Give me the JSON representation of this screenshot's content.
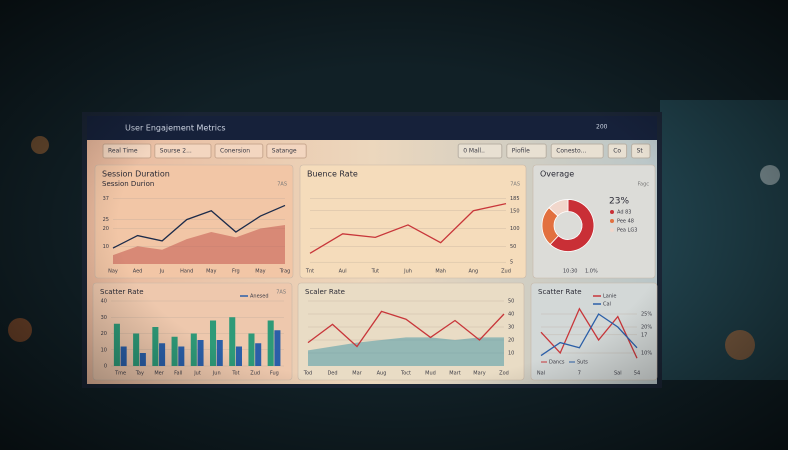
{
  "header": {
    "title": "User Engajement Metrics",
    "badge": "200"
  },
  "toolbar": {
    "left": [
      "Real Time",
      "Sourse 2...",
      "Conersion",
      "Satange"
    ],
    "right": [
      "0 Mall..",
      "Piofile",
      "Conesto...",
      "Co",
      "St"
    ]
  },
  "chart_data": [
    {
      "type": "line",
      "panel_title": "Session Duration",
      "title": "Session Durion",
      "corner_note": "7AS",
      "axis_side": "left",
      "categories": [
        "Nay",
        "Aed",
        "Ju",
        "Hand",
        "May",
        "Frg",
        "May",
        "Trag"
      ],
      "series": [
        {
          "color": "#c2584f",
          "style": "area",
          "values": [
            5,
            10,
            8,
            14,
            18,
            15,
            20,
            22
          ]
        },
        {
          "color": "#1c2b4a",
          "style": "line",
          "values": [
            9,
            16,
            13,
            25,
            30,
            18,
            27,
            33
          ]
        }
      ],
      "ylim": [
        0,
        40
      ],
      "yticks": [
        10,
        20,
        25,
        37
      ]
    },
    {
      "type": "line",
      "panel_title": "Buence Rate",
      "corner_note": "7AS",
      "axis_side": "right",
      "categories": [
        "Tnt",
        "Aul",
        "Tut",
        "Juh",
        "Mah",
        "Ang",
        "Zud"
      ],
      "series": [
        {
          "color": "#c8363a",
          "style": "line",
          "values": [
            30,
            85,
            75,
            110,
            60,
            150,
            170
          ]
        }
      ],
      "ylim": [
        0,
        200
      ],
      "yticks": [
        5,
        50,
        100,
        150,
        185
      ]
    },
    {
      "type": "pie",
      "panel_title": "Overage",
      "corner_note": "Fagc",
      "center_label": "23%",
      "labels": [
        "Ad 83",
        "Pee 48",
        "Pea LG3"
      ],
      "values": [
        62,
        25,
        13
      ],
      "colors": [
        "#c92f36",
        "#e2703f",
        "#f1d7cc"
      ],
      "footer": [
        "10:30",
        "1.0%"
      ]
    },
    {
      "type": "bar",
      "title": "Scatter Rate",
      "corner_note": "7AS",
      "axis_side": "left",
      "categories": [
        "Tme",
        "Tay",
        "Mer",
        "Fall",
        "Jut",
        "Jun",
        "Tot",
        "Zud",
        "Fug"
      ],
      "series": [
        {
          "color": "#2e9a78",
          "style": "bar",
          "values": [
            26,
            20,
            24,
            18,
            20,
            28,
            30,
            20,
            28
          ]
        },
        {
          "name": "Anesed",
          "color": "#2b5fa8",
          "style": "bar",
          "values": [
            12,
            8,
            14,
            12,
            16,
            16,
            12,
            14,
            22
          ]
        }
      ],
      "ylim": [
        0,
        40
      ],
      "yticks": [
        0,
        10,
        20,
        30,
        40
      ]
    },
    {
      "type": "line",
      "title": "Scaler Rate",
      "axis_side": "right",
      "categories": [
        "Tod",
        "Ded",
        "Mar",
        "Aug",
        "Toct",
        "Mud",
        "Mart",
        "Mary",
        "Zod"
      ],
      "series": [
        {
          "color": "#4f9aa8",
          "style": "area",
          "values": [
            12,
            15,
            18,
            20,
            22,
            22,
            20,
            22,
            22
          ]
        },
        {
          "color": "#c8363a",
          "style": "line",
          "values": [
            18,
            32,
            15,
            42,
            36,
            22,
            35,
            20,
            40
          ]
        }
      ],
      "ylim": [
        0,
        50
      ],
      "yticks": [
        10,
        20,
        30,
        40,
        50
      ]
    },
    {
      "type": "line",
      "title": "Scatter Rate",
      "axis_side": "right",
      "notes": [
        "Dancs",
        "Suts"
      ],
      "categories": [
        "Nal",
        null,
        "7",
        null,
        "Sal",
        "54"
      ],
      "series": [
        {
          "name": "Lanie",
          "color": "#c8363a",
          "style": "line",
          "values": [
            18,
            10,
            27,
            15,
            24,
            8
          ]
        },
        {
          "name": "Cal",
          "color": "#2b5fa8",
          "style": "line",
          "values": [
            9,
            14,
            12,
            25,
            20,
            12
          ]
        }
      ],
      "ylim": [
        5,
        30
      ],
      "yticks": [
        {
          "value": 10,
          "label": "10%"
        },
        17,
        {
          "value": 20,
          "label": "20%"
        },
        {
          "value": 25,
          "label": "25%"
        }
      ]
    }
  ]
}
